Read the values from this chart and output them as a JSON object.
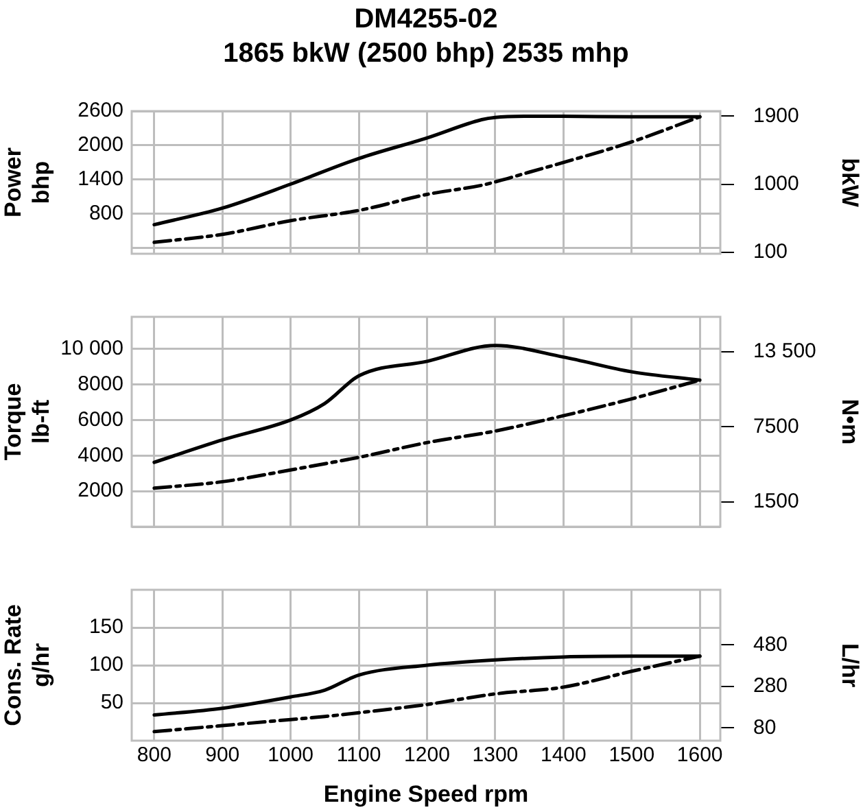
{
  "chart_data": [
    {
      "type": "line",
      "title": "DM4255-02",
      "subtitle": "1865 bkW (2500 bhp) 2535 mhp",
      "ylabel": "Power\nbhp",
      "y2label": "bkW",
      "x": [
        800,
        900,
        1000,
        1100,
        1200,
        1280,
        1300,
        1350,
        1400,
        1500,
        1600
      ],
      "xlim": [
        767,
        1630
      ],
      "xticks": [
        800,
        900,
        1000,
        1100,
        1200,
        1300,
        1400,
        1500,
        1600
      ],
      "ylim": [
        100,
        2600
      ],
      "yticks": [
        {
          "value": 200,
          "label": null
        },
        800,
        1400,
        2000,
        2600
      ],
      "y2lim": [
        80,
        1966
      ],
      "y2ticks": [
        100,
        1000,
        1900
      ],
      "tick_labels": "y",
      "grid": true,
      "marker": "none",
      "series": [
        {
          "color": "#000000",
          "line_style": "solid",
          "values": [
            610,
            900,
            1320,
            1770,
            2130,
            2450,
            2490,
            2510,
            2510,
            2500,
            2500
          ]
        },
        {
          "color": "#000000",
          "line_style": "dashed",
          "values": [
            300,
            440,
            680,
            860,
            1140,
            1300,
            1360,
            1530,
            1700,
            2060,
            2500
          ]
        }
      ]
    },
    {
      "type": "line",
      "ylabel": "Torque\nlb-ft",
      "y2label": "N•m",
      "x": [
        800,
        900,
        1000,
        1050,
        1100,
        1200,
        1300,
        1400,
        1500,
        1600
      ],
      "xlim": [
        767,
        1630
      ],
      "xticks": [
        800,
        900,
        1000,
        1100,
        1200,
        1300,
        1400,
        1500,
        1600
      ],
      "ylim": [
        0,
        11800
      ],
      "yticks": [
        {
          "value": 0,
          "label": null
        },
        2000,
        4000,
        6000,
        8000,
        {
          "value": 10000,
          "label": "10 000"
        }
      ],
      "y2lim": [
        -500,
        16300
      ],
      "y2ticks": [
        1500,
        7500,
        {
          "value": 13500,
          "label": "13 500"
        }
      ],
      "tick_labels": "y",
      "grid": true,
      "marker": "none",
      "series": [
        {
          "color": "#000000",
          "line_style": "solid",
          "values": [
            3620,
            4880,
            6000,
            6930,
            8480,
            9300,
            10190,
            9540,
            8710,
            8240
          ]
        },
        {
          "color": "#000000",
          "line_style": "dashed",
          "values": [
            2170,
            2530,
            3190,
            3540,
            3900,
            4730,
            5380,
            6240,
            7190,
            8240
          ]
        }
      ]
    },
    {
      "type": "line",
      "ylabel": "Cons. Rate\ng/hr",
      "y2label": "L/hr",
      "xlabel": "Engine Speed rpm",
      "x": [
        800,
        900,
        1000,
        1050,
        1100,
        1200,
        1300,
        1400,
        1500,
        1600
      ],
      "xlim": [
        767,
        1630
      ],
      "xticks": [
        800,
        900,
        1000,
        1100,
        1200,
        1300,
        1400,
        1500,
        1600
      ],
      "ylim": [
        0,
        200
      ],
      "yticks": [
        50,
        100,
        150
      ],
      "y2lim": [
        18,
        746
      ],
      "y2ticks": [
        80,
        280,
        480
      ],
      "grid": true,
      "marker": "none",
      "series": [
        {
          "color": "#000000",
          "line_style": "solid",
          "values": [
            34,
            43,
            58,
            67,
            87,
            100,
            107,
            111,
            112,
            112
          ]
        },
        {
          "color": "#000000",
          "line_style": "dashed",
          "values": [
            12,
            20,
            28,
            32,
            37,
            48,
            62,
            71,
            92,
            112
          ]
        }
      ]
    }
  ]
}
